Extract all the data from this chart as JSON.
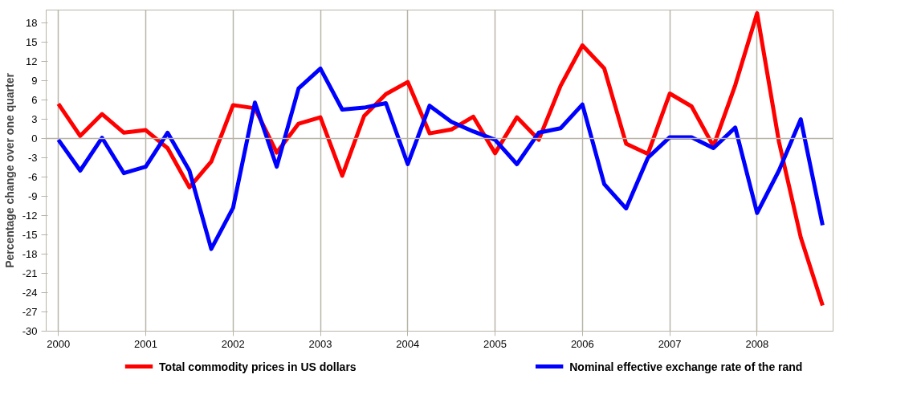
{
  "chart_data": {
    "type": "line",
    "ylabel": "Percentage change over one quarter",
    "x": [
      2000,
      2000.25,
      2000.5,
      2000.75,
      2001,
      2001.25,
      2001.5,
      2001.75,
      2002,
      2002.25,
      2002.5,
      2002.75,
      2003,
      2003.25,
      2003.5,
      2003.75,
      2004,
      2004.25,
      2004.5,
      2004.75,
      2005,
      2005.25,
      2005.5,
      2005.75,
      2006,
      2006.25,
      2006.5,
      2006.75,
      2007,
      2007.25,
      2007.5,
      2007.75,
      2008,
      2008.25,
      2008.5,
      2008.75
    ],
    "series": [
      {
        "name": "Total commodity prices in US dollars",
        "color": "#ff0000",
        "values": [
          5.4,
          0.4,
          3.8,
          0.9,
          1.3,
          -1.5,
          -7.6,
          -3.6,
          5.2,
          4.7,
          -2.2,
          2.3,
          3.3,
          -5.8,
          3.5,
          6.9,
          8.8,
          0.8,
          1.4,
          3.4,
          -2.3,
          3.3,
          -0.2,
          8.2,
          14.5,
          10.9,
          -0.8,
          -2.4,
          7.0,
          5.0,
          -1.2,
          8.3,
          19.5,
          -0.5,
          -15.4,
          -26.0
        ]
      },
      {
        "name": "Nominal effective exchange rate of the rand",
        "color": "#0000ff",
        "values": [
          -0.2,
          -5.0,
          0.1,
          -5.4,
          -4.4,
          0.9,
          -5.0,
          -17.2,
          -10.8,
          5.6,
          -4.4,
          7.8,
          10.9,
          4.5,
          4.8,
          5.5,
          -4.0,
          5.1,
          2.6,
          1.1,
          -0.2,
          -4.0,
          0.9,
          1.6,
          5.3,
          -7.1,
          -10.9,
          -3.0,
          0.2,
          0.2,
          -1.5,
          1.7,
          -11.6,
          -5.0,
          3.0,
          -13.5
        ]
      }
    ],
    "xlim": [
      1999.86,
      2008.87
    ],
    "xticks": [
      2000,
      2001,
      2002,
      2003,
      2004,
      2005,
      2006,
      2007,
      2008
    ],
    "ylim": [
      -30,
      20
    ],
    "yticks": [
      -30,
      -27,
      -24,
      -21,
      -18,
      -15,
      -12,
      -9,
      -6,
      -3,
      0,
      3,
      6,
      9,
      12,
      15,
      18
    ],
    "ref_lines": [
      {
        "axis": "y",
        "value": 0,
        "color": "#b8b4a8"
      }
    ],
    "grid": "x",
    "legend": "bottom",
    "marker": "none",
    "line_style": "solid"
  }
}
